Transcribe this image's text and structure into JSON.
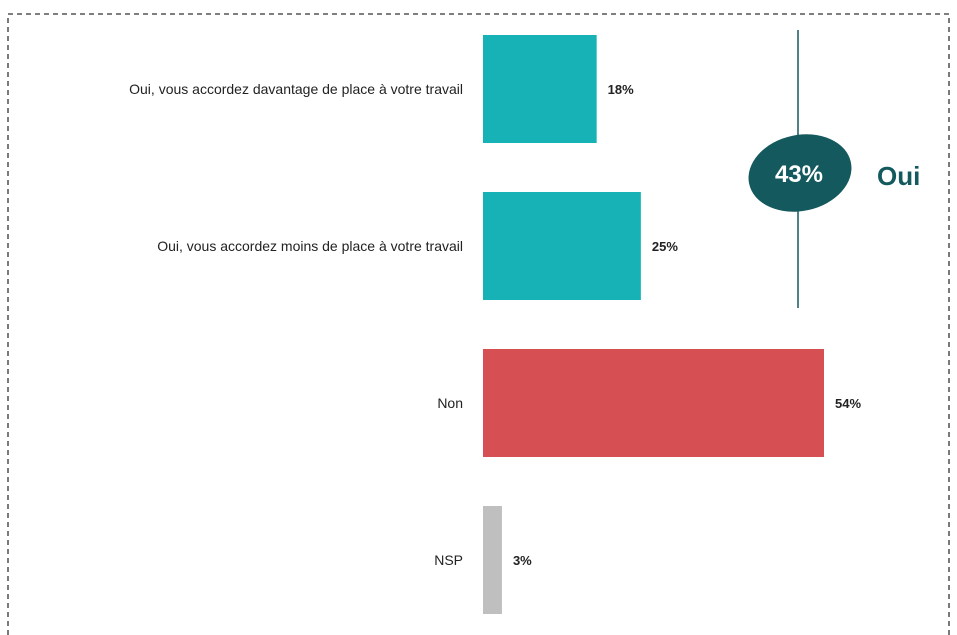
{
  "chart_data": {
    "type": "bar",
    "orientation": "horizontal",
    "categories": [
      "Oui, vous accordez davantage de place à votre travail",
      "Oui, vous accordez moins de place à votre travail",
      "Non",
      "NSP"
    ],
    "values": [
      18,
      25,
      54,
      3
    ],
    "value_labels": [
      "18%",
      "25%",
      "54%",
      "3%"
    ],
    "bar_colors": [
      "#17b2b5",
      "#17b2b5",
      "#d64f52",
      "#bfbfbf"
    ],
    "xlim": [
      0,
      54
    ],
    "title": "",
    "xlabel": "",
    "ylabel": "",
    "grid": false,
    "legend": "none",
    "summary": {
      "value_label": "43%",
      "label": "Oui",
      "badge_color": "#14595d",
      "label_color": "#14595d"
    }
  }
}
